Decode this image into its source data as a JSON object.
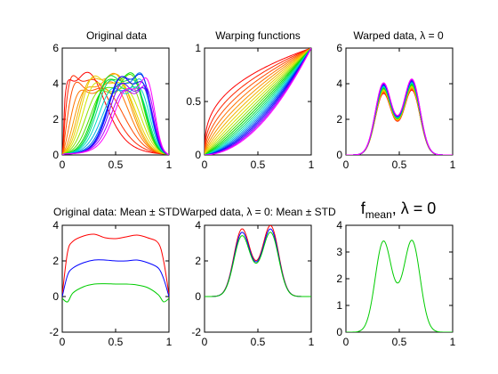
{
  "chart_data": [
    {
      "type": "line",
      "title": "Original data",
      "xlim": [
        0,
        1
      ],
      "ylim": [
        0,
        6
      ],
      "xticks": [
        "0",
        "0.5",
        "1"
      ],
      "yticks": [
        "0",
        "2",
        "4",
        "6"
      ],
      "description_of_series": "family of bimodal curves with shifting peak positions, colored with a rainbow colormap",
      "series_count": 21,
      "colormap": [
        "#ff0000",
        "#ff8000",
        "#ffff00",
        "#00ff00",
        "#00ffff",
        "#0000ff",
        "#ff00ff"
      ]
    },
    {
      "type": "line",
      "title": "Warping functions",
      "xlim": [
        0,
        1
      ],
      "ylim": [
        0,
        1
      ],
      "xticks": [
        "0",
        "0.5",
        "1"
      ],
      "yticks": [
        "0",
        "0.5",
        "1"
      ],
      "series_count": 21,
      "colormap": [
        "#ff0000",
        "#ff8000",
        "#ffff00",
        "#00ff00",
        "#00ffff",
        "#0000ff",
        "#ff00ff"
      ]
    },
    {
      "type": "line",
      "title": "Warped data, λ = 0",
      "xlim": [
        0,
        1
      ],
      "ylim": [
        0,
        6
      ],
      "xticks": [
        "0",
        "0.5",
        "1"
      ],
      "yticks": [
        "0",
        "2",
        "4",
        "6"
      ],
      "series_count": 21,
      "peaks": [
        {
          "x": 0.35,
          "y": 3.9
        },
        {
          "x": 0.62,
          "y": 4.1
        }
      ],
      "valley": {
        "x": 0.48,
        "y": 2.3
      }
    },
    {
      "type": "line",
      "title": "Original data: Mean ± STD",
      "xlim": [
        0,
        1
      ],
      "ylim": [
        -2,
        4
      ],
      "xticks": [
        "0",
        "0.5",
        "1"
      ],
      "yticks": [
        "-2",
        "0",
        "2",
        "4"
      ],
      "series": [
        {
          "color": "#ff0000",
          "x": [
            0,
            0.05,
            0.1,
            0.2,
            0.3,
            0.4,
            0.5,
            0.6,
            0.7,
            0.8,
            0.9,
            0.95,
            1
          ],
          "y": [
            0.1,
            2.5,
            3.1,
            3.4,
            3.5,
            3.3,
            3.25,
            3.35,
            3.45,
            3.3,
            3.0,
            2.0,
            0.1
          ]
        },
        {
          "color": "#0000ff",
          "x": [
            0,
            0.05,
            0.1,
            0.2,
            0.3,
            0.4,
            0.5,
            0.6,
            0.7,
            0.8,
            0.9,
            0.95,
            1
          ],
          "y": [
            0,
            1.2,
            1.6,
            1.9,
            2.05,
            2.05,
            2.0,
            2.0,
            2.05,
            1.9,
            1.6,
            1.0,
            0
          ]
        },
        {
          "color": "#00cc00",
          "x": [
            0,
            0.05,
            0.1,
            0.2,
            0.3,
            0.4,
            0.5,
            0.6,
            0.7,
            0.8,
            0.9,
            0.95,
            1
          ],
          "y": [
            -0.1,
            -0.3,
            0.2,
            0.55,
            0.7,
            0.72,
            0.7,
            0.7,
            0.65,
            0.5,
            0.1,
            -0.3,
            -0.1
          ]
        }
      ]
    },
    {
      "type": "line",
      "title": "Warped data, λ = 0: Mean ± STD",
      "xlim": [
        0,
        1
      ],
      "ylim": [
        -2,
        4
      ],
      "xticks": [
        "0",
        "0.5",
        "1"
      ],
      "yticks": [
        "-2",
        "0",
        "2",
        "4"
      ],
      "series": [
        {
          "color": "#ff0000",
          "peaks": [
            3.95,
            4.15
          ]
        },
        {
          "color": "#0000ff",
          "peaks": [
            3.75,
            3.95
          ]
        },
        {
          "color": "#00cc00",
          "peaks": [
            3.55,
            3.75
          ]
        }
      ]
    },
    {
      "type": "line",
      "title_main": "f",
      "title_sub": "mean",
      "title_rest": ", λ = 0",
      "xlim": [
        0,
        1
      ],
      "ylim": [
        0,
        4
      ],
      "xticks": [
        "0",
        "0.5",
        "1"
      ],
      "yticks": [
        "0",
        "1",
        "2",
        "3",
        "4"
      ],
      "series": [
        {
          "color": "#00cc00",
          "peaks": [
            {
              "x": 0.35,
              "y": 3.62
            },
            {
              "x": 0.62,
              "y": 3.65
            }
          ],
          "valley": {
            "x": 0.48,
            "y": 2.3
          }
        }
      ]
    }
  ]
}
